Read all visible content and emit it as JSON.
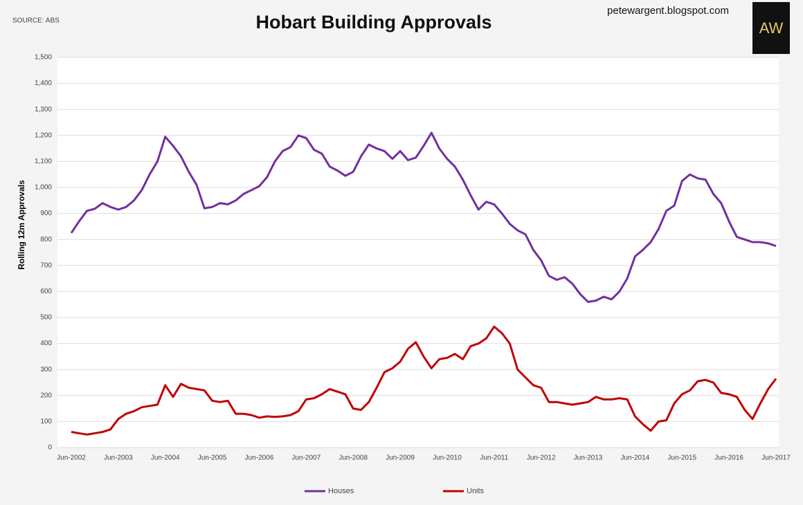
{
  "source": "SOURCE: ABS",
  "site": "petewargent.blogspot.com",
  "logo": "AW",
  "chart_data": {
    "type": "line",
    "title": "Hobart Building Approvals",
    "y_label": "Rolling 12m Approvals",
    "categories": [
      "Jun-2002",
      null,
      null,
      null,
      null,
      null,
      "Jun-2003",
      null,
      null,
      null,
      null,
      null,
      "Jun-2004",
      null,
      null,
      null,
      null,
      null,
      "Jun-2005",
      null,
      null,
      null,
      null,
      null,
      "Jun-2006",
      null,
      null,
      null,
      null,
      null,
      "Jun-2007",
      null,
      null,
      null,
      null,
      null,
      "Jun-2008",
      null,
      null,
      null,
      null,
      null,
      "Jun-2009",
      null,
      null,
      null,
      null,
      null,
      "Jun-2010",
      null,
      null,
      null,
      null,
      null,
      "Jun-2011",
      null,
      null,
      null,
      null,
      null,
      "Jun-2012",
      null,
      null,
      null,
      null,
      null,
      "Jun-2013",
      null,
      null,
      null,
      null,
      null,
      "Jun-2014",
      null,
      null,
      null,
      null,
      null,
      "Jun-2015",
      null,
      null,
      null,
      null,
      null,
      "Jun-2016",
      null,
      null,
      null,
      null,
      null,
      "Jun-2017"
    ],
    "series": [
      {
        "name": "Houses",
        "color": "#7030a0",
        "values": [
          825,
          870,
          910,
          918,
          940,
          925,
          915,
          925,
          950,
          990,
          1050,
          1100,
          1195,
          1160,
          1120,
          1060,
          1010,
          920,
          925,
          940,
          935,
          950,
          975,
          990,
          1005,
          1040,
          1100,
          1140,
          1155,
          1200,
          1190,
          1145,
          1130,
          1080,
          1065,
          1045,
          1060,
          1120,
          1165,
          1150,
          1140,
          1110,
          1140,
          1105,
          1115,
          1160,
          1210,
          1150,
          1110,
          1080,
          1030,
          970,
          915,
          945,
          935,
          900,
          860,
          835,
          820,
          760,
          720,
          660,
          645,
          655,
          630,
          590,
          560,
          565,
          580,
          570,
          600,
          650,
          735,
          760,
          790,
          840,
          910,
          930,
          1025,
          1050,
          1035,
          1030,
          975,
          940,
          870,
          810,
          800,
          790,
          790,
          785,
          775
        ]
      },
      {
        "name": "Units",
        "color": "#c00000",
        "values": [
          60,
          55,
          50,
          55,
          60,
          70,
          110,
          130,
          140,
          155,
          160,
          165,
          240,
          195,
          245,
          230,
          225,
          220,
          180,
          175,
          180,
          130,
          130,
          125,
          115,
          120,
          118,
          120,
          125,
          140,
          185,
          190,
          205,
          225,
          215,
          205,
          150,
          145,
          175,
          230,
          290,
          305,
          330,
          380,
          405,
          350,
          305,
          340,
          345,
          360,
          340,
          390,
          400,
          420,
          465,
          440,
          400,
          300,
          270,
          240,
          230,
          175,
          175,
          170,
          165,
          170,
          175,
          195,
          185,
          185,
          190,
          185,
          120,
          90,
          65,
          100,
          105,
          170,
          205,
          220,
          255,
          260,
          250,
          210,
          205,
          195,
          145,
          110,
          170,
          225,
          265
        ]
      }
    ],
    "ylim": [
      0,
      1500
    ],
    "yticks": [
      0,
      100,
      200,
      300,
      400,
      500,
      600,
      700,
      800,
      900,
      {
        "value": 1000,
        "label": "1,000"
      },
      {
        "value": 1100,
        "label": "1,100"
      },
      {
        "value": 1200,
        "label": "1,200"
      },
      {
        "value": 1300,
        "label": "1,300"
      },
      {
        "value": 1400,
        "label": "1,400"
      },
      {
        "value": 1500,
        "label": "1,500"
      }
    ],
    "grid": true
  }
}
